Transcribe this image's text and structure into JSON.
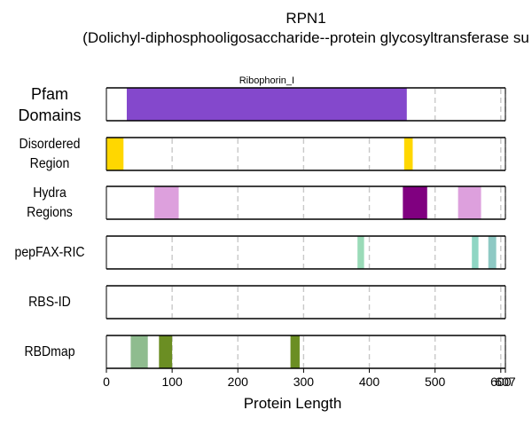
{
  "title": {
    "line1": "RPN1",
    "line2": "(Dolichyl-diphosphooligosaccharide--protein glycosyltransferase su"
  },
  "chart_data": {
    "type": "bar",
    "xlabel": "Protein Length",
    "xlim": [
      0,
      607
    ],
    "xticks": [
      0,
      100,
      200,
      300,
      400,
      500,
      600,
      607
    ],
    "xtick_labels": [
      "0",
      "100",
      "200",
      "300",
      "400",
      "500",
      "600",
      "607"
    ],
    "grid": "vertical dashed at x ticks",
    "tracks": [
      {
        "name": "Pfam Domains",
        "label_lines": [
          "Pfam",
          "Domains"
        ],
        "segments": [
          {
            "start": 31,
            "end": 457,
            "color": "#8448cc",
            "label": "Ribophorin_I"
          }
        ]
      },
      {
        "name": "Disordered Region",
        "label_lines": [
          "Disordered",
          "Region"
        ],
        "segments": [
          {
            "start": 0,
            "end": 26,
            "color": "#ffd700"
          },
          {
            "start": 453,
            "end": 466,
            "color": "#ffd700"
          }
        ]
      },
      {
        "name": "Hydra Regions",
        "label_lines": [
          "Hydra",
          "Regions"
        ],
        "segments": [
          {
            "start": 73,
            "end": 110,
            "color": "#dda0dd"
          },
          {
            "start": 451,
            "end": 488,
            "color": "#800080"
          },
          {
            "start": 535,
            "end": 570,
            "color": "#dda0dd"
          }
        ]
      },
      {
        "name": "pepFAX-RIC",
        "label_lines": [
          "pepFAX-RIC"
        ],
        "segments": [
          {
            "start": 382,
            "end": 392,
            "color": "#9adbb8"
          },
          {
            "start": 556,
            "end": 566,
            "color": "#8fd6c4"
          },
          {
            "start": 581,
            "end": 593,
            "color": "#8ec9c4"
          }
        ]
      },
      {
        "name": "RBS-ID",
        "label_lines": [
          "RBS-ID"
        ],
        "segments": []
      },
      {
        "name": "RBDmap",
        "label_lines": [
          "RBDmap"
        ],
        "segments": [
          {
            "start": 37,
            "end": 63,
            "color": "#8fbc8f"
          },
          {
            "start": 80,
            "end": 100,
            "color": "#6b8e23"
          },
          {
            "start": 280,
            "end": 294,
            "color": "#6b8e23"
          }
        ]
      }
    ]
  }
}
